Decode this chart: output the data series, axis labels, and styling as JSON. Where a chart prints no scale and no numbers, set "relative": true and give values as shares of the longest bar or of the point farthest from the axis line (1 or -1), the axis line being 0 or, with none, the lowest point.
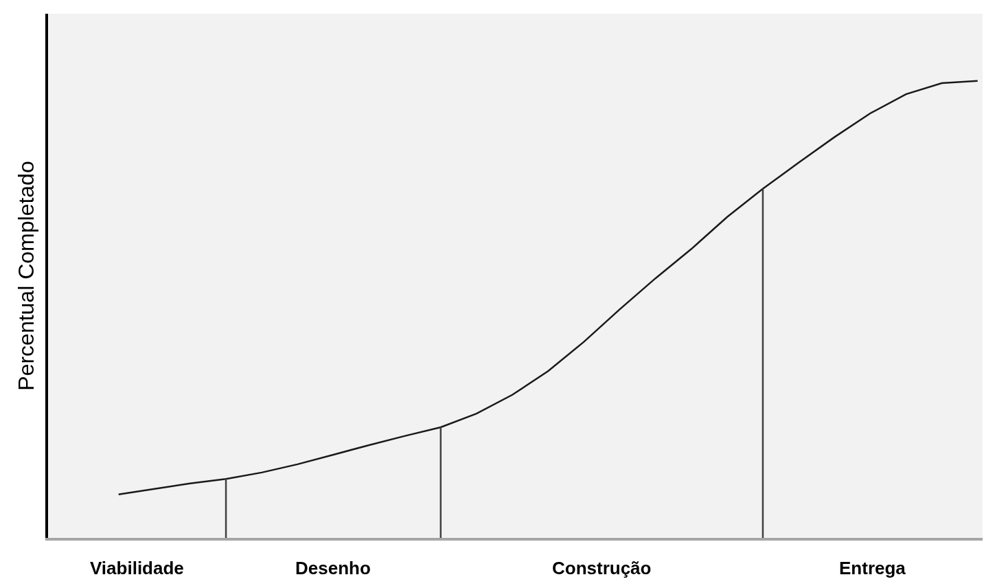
{
  "chart_data": {
    "type": "line",
    "relative": true,
    "ylabel": "Percentual Completado",
    "categories": [
      null,
      null,
      null,
      null,
      null,
      null,
      null,
      null,
      null,
      null,
      null,
      null,
      null,
      null,
      null,
      null,
      null,
      null,
      null,
      null,
      null,
      null,
      null,
      null,
      null
    ],
    "series": [
      {
        "color": "#1a1a1a",
        "values": [
          0.095,
          0.107,
          0.119,
          0.129,
          0.143,
          0.161,
          0.182,
          0.203,
          0.223,
          0.242,
          0.272,
          0.313,
          0.365,
          0.429,
          0.5,
          0.568,
          0.632,
          0.702,
          0.764,
          0.821,
          0.877,
          0.929,
          0.971,
          0.995,
          1.0
        ]
      }
    ],
    "annotations": [
      "Viabilidade",
      "Desenho",
      "Construção",
      "Entrega"
    ],
    "grid": false,
    "marker": "none",
    "line_style": "solid"
  }
}
